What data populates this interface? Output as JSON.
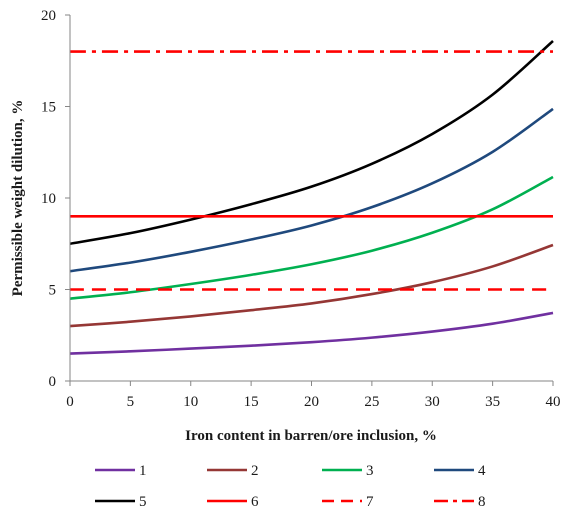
{
  "chart_data": {
    "type": "line",
    "xlabel": "Iron content in barren/ore inclusion, %",
    "ylabel": "Permissible weight dilution, %",
    "xlim": [
      0,
      40
    ],
    "ylim": [
      0,
      20
    ],
    "x_ticks": [
      0,
      5,
      10,
      15,
      20,
      25,
      30,
      35,
      40
    ],
    "y_ticks": [
      0,
      5,
      10,
      15,
      20
    ],
    "grid": false,
    "legend_position": "bottom",
    "x": [
      0,
      5,
      10,
      15,
      20,
      25,
      30,
      35,
      40
    ],
    "series": [
      {
        "name": "1",
        "color": "#7030A0",
        "dash": "solid",
        "values": [
          1.5,
          1.62,
          1.77,
          1.93,
          2.12,
          2.37,
          2.7,
          3.13,
          3.72
        ]
      },
      {
        "name": "2",
        "color": "#953735",
        "dash": "solid",
        "values": [
          3.0,
          3.24,
          3.53,
          3.87,
          4.24,
          4.75,
          5.4,
          6.26,
          7.43
        ]
      },
      {
        "name": "3",
        "color": "#00B050",
        "dash": "solid",
        "values": [
          4.5,
          4.85,
          5.3,
          5.8,
          6.38,
          7.12,
          8.1,
          9.38,
          11.15
        ]
      },
      {
        "name": "4",
        "color": "#1F497D",
        "dash": "solid",
        "values": [
          6.0,
          6.47,
          7.06,
          7.73,
          8.5,
          9.5,
          10.8,
          12.52,
          14.87
        ]
      },
      {
        "name": "5",
        "color": "#000000",
        "dash": "solid",
        "values": [
          7.5,
          8.08,
          8.82,
          9.66,
          10.62,
          11.87,
          13.5,
          15.65,
          18.58
        ]
      },
      {
        "name": "6",
        "color": "#FF0000",
        "dash": "solid",
        "values": [
          9,
          9,
          9,
          9,
          9,
          9,
          9,
          9,
          9
        ]
      },
      {
        "name": "7",
        "color": "#FF0000",
        "dash": "dashed",
        "values": [
          5,
          5,
          5,
          5,
          5,
          5,
          5,
          5,
          5
        ]
      },
      {
        "name": "8",
        "color": "#FF0000",
        "dash": "dashdot",
        "values": [
          18,
          18,
          18,
          18,
          18,
          18,
          18,
          18,
          18
        ]
      }
    ]
  }
}
